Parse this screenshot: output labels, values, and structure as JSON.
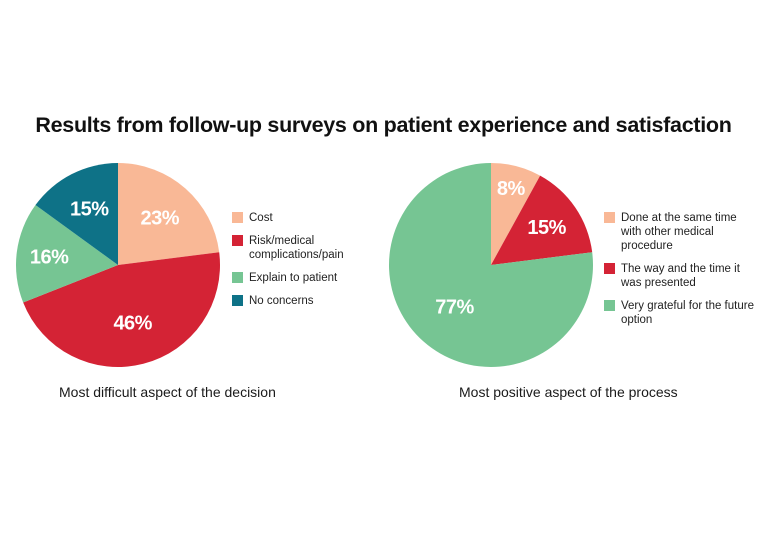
{
  "title": "Results from follow-up surveys on patient experience and satisfaction",
  "chart_data": [
    {
      "type": "pie",
      "title": "Most difficult aspect of the decision",
      "slices": [
        {
          "label": "Cost",
          "value": 23,
          "text": "23%",
          "color": "#f9b896"
        },
        {
          "label": "Risk/medical complications/pain",
          "value": 46,
          "text": "46%",
          "color": "#d42335"
        },
        {
          "label": "Explain to patient",
          "value": 16,
          "text": "16%",
          "color": "#76c593"
        },
        {
          "label": "No concerns",
          "value": 15,
          "text": "15%",
          "color": "#0e7287"
        }
      ],
      "legend_position": "right"
    },
    {
      "type": "pie",
      "title": "Most positive aspect of the process",
      "slices": [
        {
          "label": "Done at the same time with other medical procedure",
          "value": 8,
          "text": "8%",
          "color": "#f9b896"
        },
        {
          "label": "The way and the time it was presented",
          "value": 15,
          "text": "15%",
          "color": "#d42335"
        },
        {
          "label": "Very grateful for the future option",
          "value": 77,
          "text": "77%",
          "color": "#76c593"
        }
      ],
      "legend_position": "right"
    }
  ]
}
